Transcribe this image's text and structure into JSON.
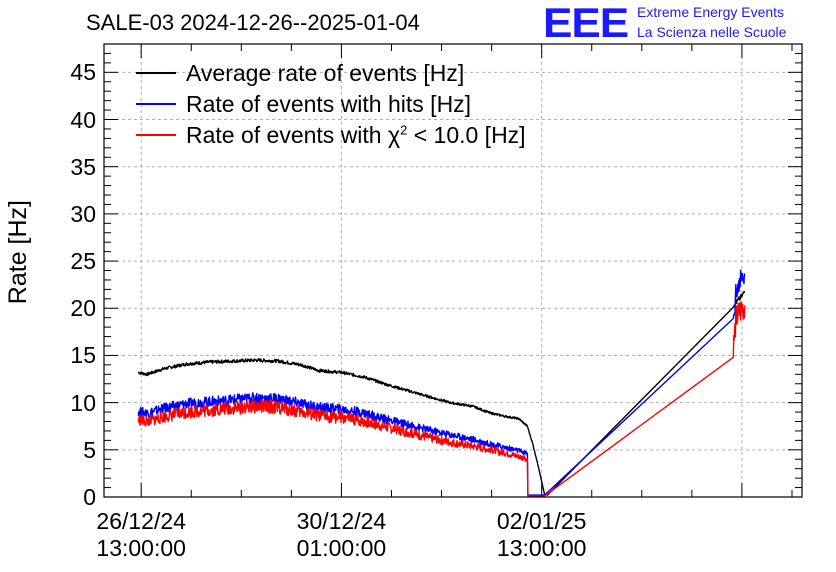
{
  "chart_data": {
    "type": "line",
    "title": "SALE-03 2024-12-26--2025-01-04",
    "ylabel": "Rate [Hz]",
    "xlabel": "",
    "ylim": [
      0,
      48
    ],
    "yticks": [
      "0",
      "5",
      "10",
      "15",
      "20",
      "25",
      "30",
      "35",
      "40",
      "45"
    ],
    "xticks": [
      {
        "date": "26/12/24",
        "time": "13:00:00"
      },
      {
        "date": "30/12/24",
        "time": "01:00:00"
      },
      {
        "date": "02/01/25",
        "time": "13:00:00"
      }
    ],
    "grid": true,
    "legend_position": "top-left",
    "x_unit": "days since 26/12/24 13:00:00",
    "series": [
      {
        "name": "Average rate of events [Hz]",
        "color": "#000000",
        "points": [
          [
            -0.05,
            13.2
          ],
          [
            0.1,
            13.0
          ],
          [
            0.4,
            13.6
          ],
          [
            0.8,
            14.1
          ],
          [
            1.2,
            14.3
          ],
          [
            1.6,
            14.4
          ],
          [
            2.0,
            14.5
          ],
          [
            2.4,
            14.4
          ],
          [
            2.8,
            14.0
          ],
          [
            3.1,
            13.4
          ],
          [
            3.5,
            13.2
          ],
          [
            3.9,
            12.7
          ],
          [
            4.3,
            11.9
          ],
          [
            4.7,
            11.2
          ],
          [
            5.1,
            10.5
          ],
          [
            5.4,
            10.0
          ],
          [
            5.8,
            9.6
          ],
          [
            6.1,
            8.9
          ],
          [
            6.4,
            8.5
          ],
          [
            6.6,
            8.3
          ],
          [
            6.75,
            7.5
          ],
          [
            6.85,
            5.5
          ],
          [
            6.95,
            3.0
          ],
          [
            7.05,
            0.3
          ],
          [
            7.1,
            0.2
          ],
          [
            10.35,
            20.3
          ],
          [
            10.5,
            21.3
          ],
          [
            10.55,
            21.8
          ]
        ]
      },
      {
        "name": "Rate of events with hits [Hz]",
        "color": "#0000ff",
        "points": [
          [
            -0.05,
            9.1
          ],
          [
            0.1,
            8.9
          ],
          [
            0.4,
            9.4
          ],
          [
            0.8,
            9.9
          ],
          [
            1.2,
            10.1
          ],
          [
            1.6,
            10.3
          ],
          [
            2.0,
            10.5
          ],
          [
            2.4,
            10.4
          ],
          [
            2.8,
            9.9
          ],
          [
            3.1,
            9.5
          ],
          [
            3.5,
            9.3
          ],
          [
            3.9,
            8.9
          ],
          [
            4.3,
            8.2
          ],
          [
            4.7,
            7.6
          ],
          [
            5.1,
            7.0
          ],
          [
            5.4,
            6.6
          ],
          [
            5.8,
            6.1
          ],
          [
            6.1,
            5.6
          ],
          [
            6.4,
            5.2
          ],
          [
            6.6,
            4.9
          ],
          [
            6.75,
            4.6
          ],
          [
            6.76,
            0.2
          ],
          [
            6.95,
            0.2
          ],
          [
            7.05,
            0.2
          ],
          [
            10.35,
            18.5
          ],
          [
            10.4,
            22.0
          ],
          [
            10.5,
            23.0
          ],
          [
            10.55,
            23.4
          ]
        ]
      },
      {
        "name": "Rate of events with χ² < 10.0 [Hz]",
        "color": "#ff0000",
        "points": [
          [
            -0.05,
            8.2
          ],
          [
            0.1,
            8.0
          ],
          [
            0.4,
            8.5
          ],
          [
            0.8,
            9.0
          ],
          [
            1.2,
            9.2
          ],
          [
            1.6,
            9.4
          ],
          [
            2.0,
            9.6
          ],
          [
            2.4,
            9.5
          ],
          [
            2.8,
            9.0
          ],
          [
            3.1,
            8.6
          ],
          [
            3.5,
            8.4
          ],
          [
            3.9,
            8.0
          ],
          [
            4.3,
            7.4
          ],
          [
            4.7,
            6.8
          ],
          [
            5.1,
            6.2
          ],
          [
            5.4,
            5.8
          ],
          [
            5.8,
            5.4
          ],
          [
            6.1,
            5.0
          ],
          [
            6.4,
            4.6
          ],
          [
            6.6,
            4.3
          ],
          [
            6.75,
            4.0
          ],
          [
            6.76,
            0.1
          ],
          [
            6.95,
            0.1
          ],
          [
            7.05,
            0.1
          ],
          [
            10.35,
            16.0
          ],
          [
            10.4,
            19.0
          ],
          [
            10.5,
            20.0
          ],
          [
            10.55,
            20.3
          ]
        ]
      }
    ]
  },
  "legend": {
    "entries": [
      {
        "text": "Average rate of events [Hz]"
      },
      {
        "text": "Rate of events with hits [Hz]"
      },
      {
        "text": "Rate of events with χ",
        "sup": "2",
        "rest": " < 10.0 [Hz]"
      }
    ]
  },
  "branding": {
    "logo": "EEE",
    "line1": "Extreme Energy Events",
    "line2": "La Scienza nelle Scuole"
  }
}
